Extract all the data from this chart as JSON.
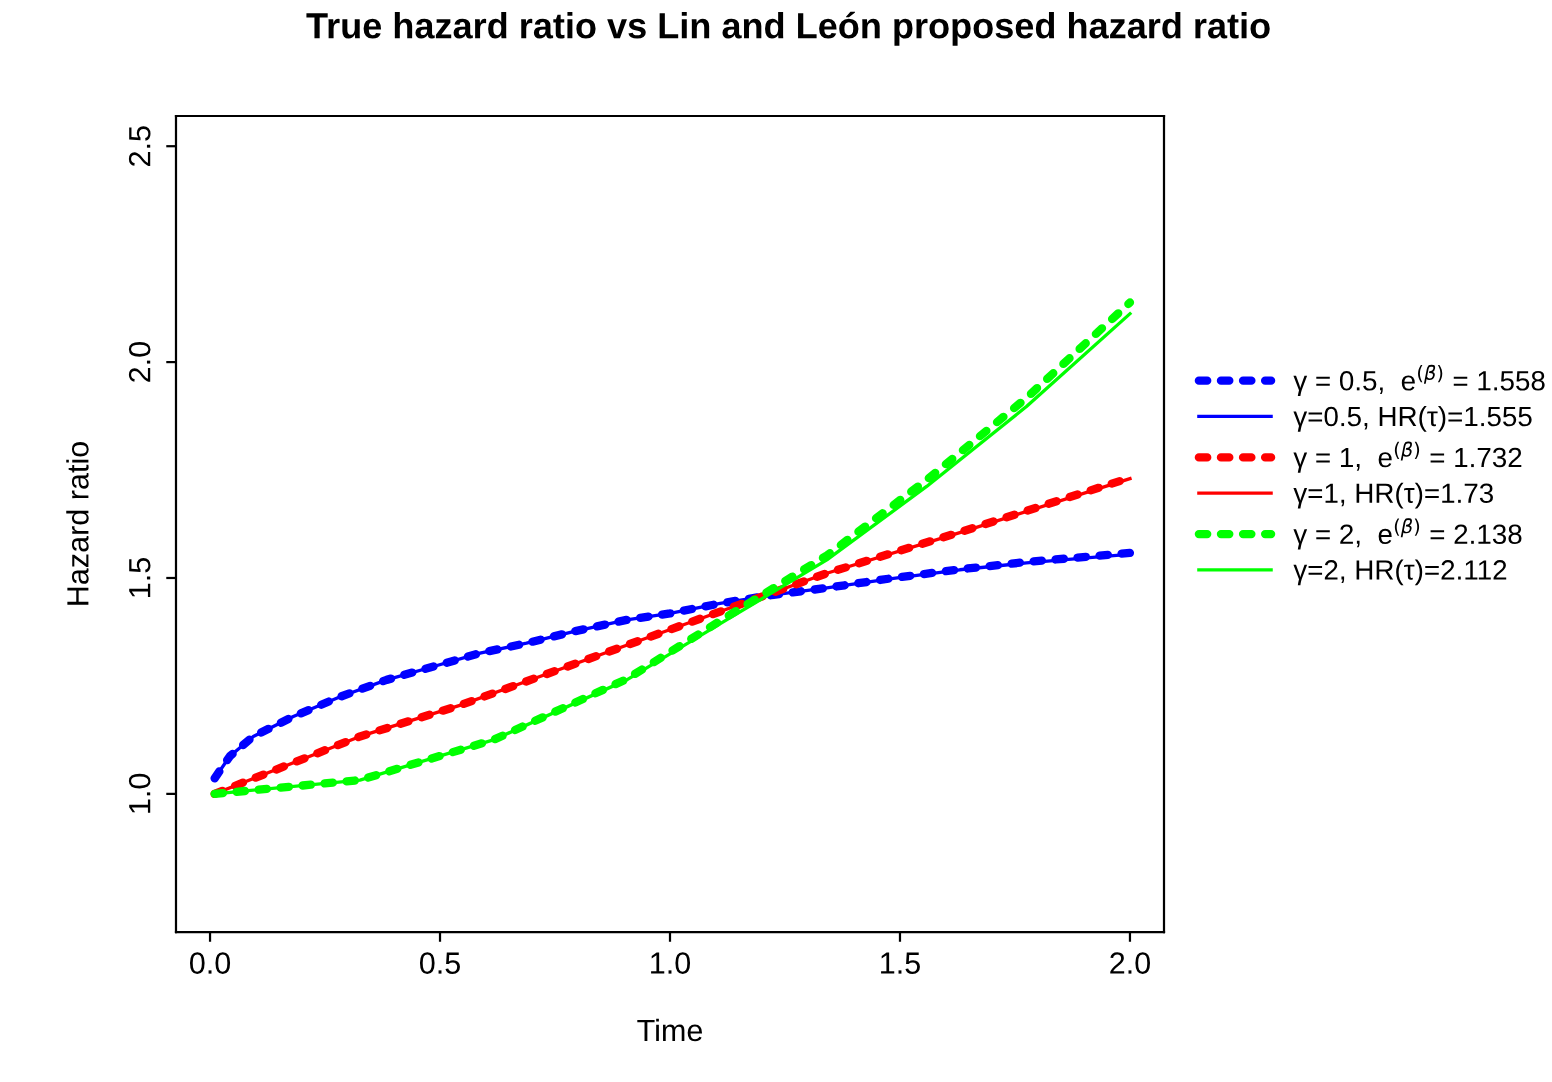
{
  "chart_data": {
    "type": "line",
    "title": "True hazard ratio vs Lin and León proposed hazard ratio",
    "xlabel": "Time",
    "ylabel": "Hazard ratio",
    "xlim": [
      -0.074,
      2.074
    ],
    "ylim": [
      0.68,
      2.57
    ],
    "xticks": [
      {
        "value": 0,
        "label": "0.0"
      },
      {
        "value": 0.5,
        "label": "0.5"
      },
      {
        "value": 1,
        "label": "1.0"
      },
      {
        "value": 1.5,
        "label": "1.5"
      },
      {
        "value": 2,
        "label": "2.0"
      }
    ],
    "yticks": [
      {
        "value": 1,
        "label": "1.0"
      },
      {
        "value": 1.5,
        "label": "1.5"
      },
      {
        "value": 2,
        "label": "2.0"
      },
      {
        "value": 2.5,
        "label": "2.5"
      }
    ],
    "grid": false,
    "legend": "right",
    "series": [
      {
        "name": "γ = 0.5,  e$^{(β̄)}$ = 1.558",
        "color": "#0000ff",
        "line_style": "dotted",
        "x": [
          0.01,
          0.043,
          0.094,
          0.181,
          0.283,
          0.384,
          0.486,
          0.587,
          0.688,
          0.79,
          0.906,
          1.0,
          1.109,
          1.225,
          1.341,
          1.486,
          1.63,
          1.775,
          2.0
        ],
        "values": [
          1.036,
          1.087,
          1.133,
          1.179,
          1.225,
          1.264,
          1.295,
          1.326,
          1.349,
          1.376,
          1.403,
          1.418,
          1.441,
          1.461,
          1.477,
          1.5,
          1.52,
          1.537,
          1.558
        ]
      },
      {
        "name": "γ=0.5, HR(τ)=1.555",
        "color": "#0000ff",
        "line_style": "solid",
        "x": [
          0.01,
          0.043,
          0.094,
          0.181,
          0.283,
          0.384,
          0.486,
          0.587,
          0.688,
          0.79,
          0.906,
          1.0,
          1.109,
          1.225,
          1.341,
          1.486,
          1.63,
          1.775,
          2.0
        ],
        "values": [
          1.036,
          1.087,
          1.133,
          1.179,
          1.225,
          1.264,
          1.295,
          1.326,
          1.349,
          1.376,
          1.403,
          1.418,
          1.441,
          1.461,
          1.477,
          1.499,
          1.519,
          1.535,
          1.555
        ]
      },
      {
        "name": "γ = 1,  e$^{(β̄)}$ = 1.732",
        "color": "#ff0000",
        "line_style": "dotted",
        "x": [
          0.01,
          0.326,
          0.543,
          0.978,
          1.341,
          1.63,
          2.0
        ],
        "values": [
          1.0,
          1.133,
          1.205,
          1.372,
          1.511,
          1.606,
          1.732
        ]
      },
      {
        "name": "γ=1, HR(τ)=1.73",
        "color": "#ff0000",
        "line_style": "solid",
        "x": [
          0.01,
          0.326,
          0.543,
          0.978,
          1.341,
          1.63,
          2.0
        ],
        "values": [
          1.0,
          1.133,
          1.205,
          1.372,
          1.511,
          1.605,
          1.73
        ]
      },
      {
        "name": "γ = 2,  e$^{(β̄)}$ = 2.138",
        "color": "#00ff00",
        "line_style": "dotted",
        "x": [
          0.01,
          0.326,
          0.616,
          0.906,
          1.123,
          1.341,
          1.558,
          1.775,
          2.0
        ],
        "values": [
          1.0,
          1.032,
          1.125,
          1.266,
          1.41,
          1.552,
          1.727,
          1.917,
          2.138
        ]
      },
      {
        "name": "γ=2, HR(τ)=2.112",
        "color": "#00ff00",
        "line_style": "solid",
        "x": [
          0.01,
          0.326,
          0.616,
          0.906,
          1.123,
          1.341,
          1.558,
          1.775,
          2.0
        ],
        "values": [
          1.0,
          1.032,
          1.125,
          1.264,
          1.403,
          1.542,
          1.712,
          1.897,
          2.112
        ]
      }
    ]
  }
}
